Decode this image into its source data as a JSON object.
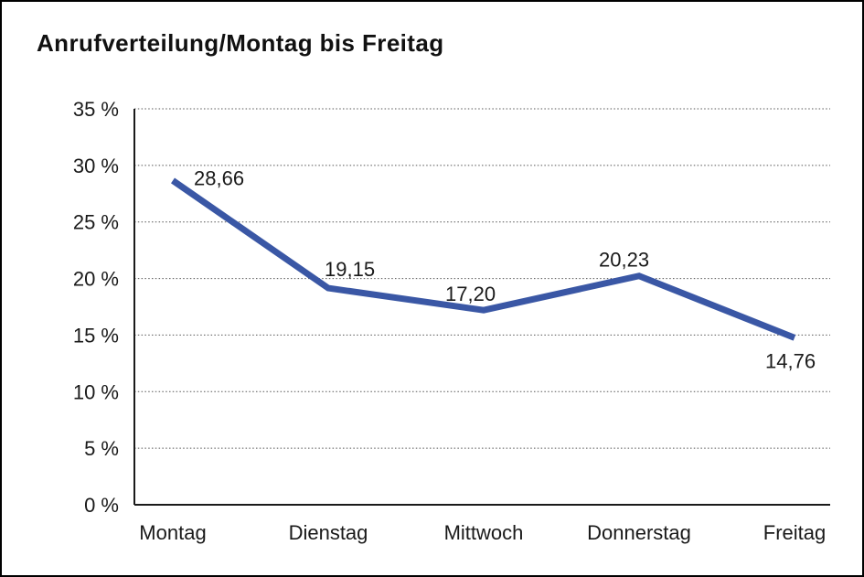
{
  "chart": {
    "title": "Anrufverteilung/Montag bis Freitag"
  },
  "chart_data": {
    "type": "line",
    "title": "Anrufverteilung/Montag bis Freitag",
    "categories": [
      "Montag",
      "Dienstag",
      "Mittwoch",
      "Donnerstag",
      "Freitag"
    ],
    "values": [
      28.66,
      19.15,
      17.2,
      20.23,
      14.76
    ],
    "point_labels": [
      "28,66",
      "19,15",
      "17,20",
      "20,23",
      "14,76"
    ],
    "xlabel": "",
    "ylabel": "",
    "ylim": [
      0,
      35
    ],
    "y_tick_step": 5,
    "y_tick_labels": [
      "0 %",
      "5 %",
      "10 %",
      "15 %",
      "20 %",
      "25 %",
      "30 %",
      "35 %"
    ],
    "grid": "horizontal-dotted",
    "legend": "none",
    "line_color": "#3A57A5",
    "background_color": "#ffffff",
    "border_color": "#000000"
  }
}
